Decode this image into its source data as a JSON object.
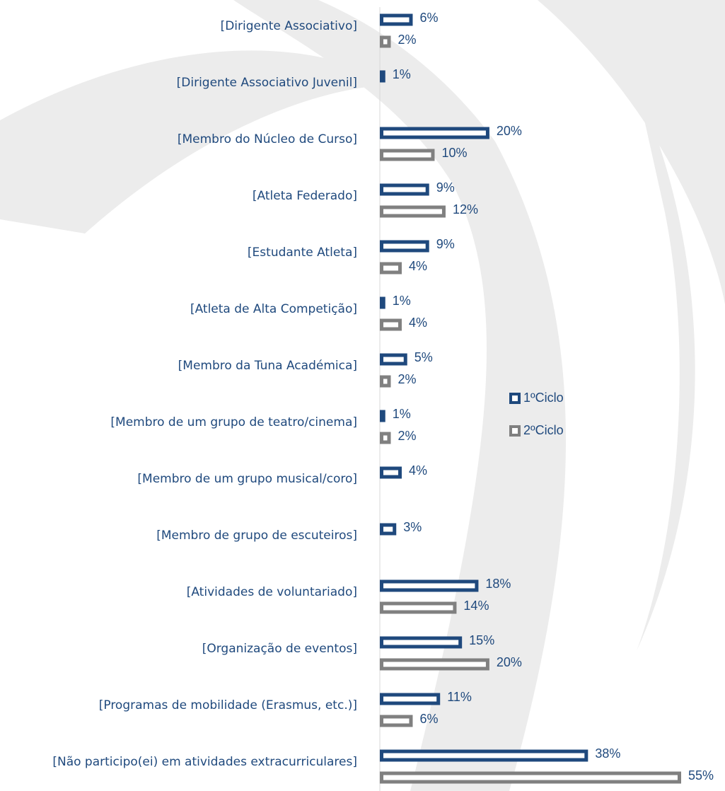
{
  "chart_data": {
    "type": "bar",
    "orientation": "horizontal",
    "categories": [
      "[Dirigente Associativo]",
      "[Dirigente Associativo Juvenil]",
      "[Membro do Núcleo de Curso]",
      "[Atleta Federado]",
      "[Estudante Atleta]",
      "[Atleta de Alta Competição]",
      "[Membro da Tuna Académica]",
      "[Membro de um grupo de teatro/cinema]",
      "[Membro de um grupo musical/coro]",
      "[Membro de grupo de escuteiros]",
      "[Atividades de voluntariado]",
      "[Organização de eventos]",
      "[Programas de mobilidade (Erasmus, etc.)]",
      "[Não participo(ei) em atividades extracurriculares]"
    ],
    "series": [
      {
        "name": "1ºCiclo",
        "color": "#1f497d",
        "values": [
          6,
          1,
          20,
          9,
          9,
          1,
          5,
          1,
          4,
          3,
          18,
          15,
          11,
          38
        ],
        "value_labels": [
          "6%",
          "1%",
          "20%",
          "9%",
          "9%",
          "1%",
          "5%",
          "1%",
          "4%",
          "3%",
          "18%",
          "15%",
          "11%",
          "38%"
        ]
      },
      {
        "name": "2ºCiclo",
        "color": "#808080",
        "values": [
          2,
          null,
          10,
          12,
          4,
          4,
          2,
          2,
          null,
          null,
          14,
          20,
          6,
          55
        ],
        "value_labels": [
          "2%",
          null,
          "10%",
          "12%",
          "4%",
          "4%",
          "2%",
          "2%",
          null,
          null,
          "14%",
          "20%",
          "6%",
          "55%"
        ]
      }
    ],
    "xlim": [
      0,
      55
    ],
    "legend": "right"
  }
}
